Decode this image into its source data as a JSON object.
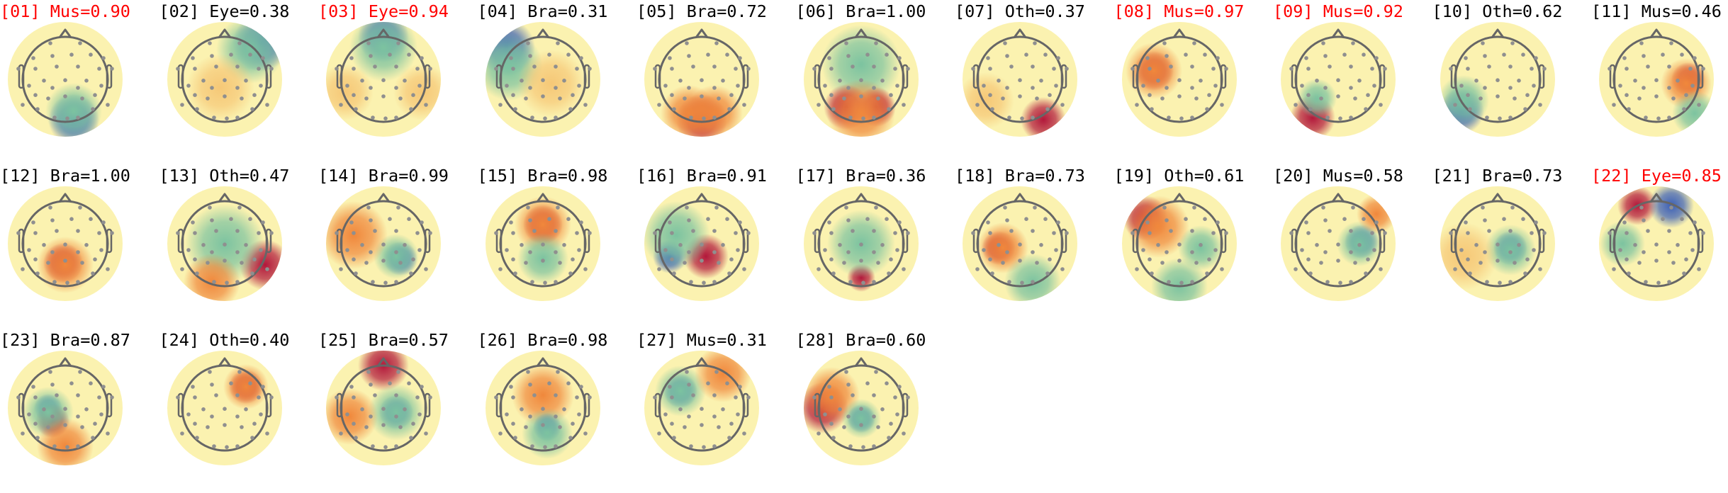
{
  "figure": {
    "flag_color": "#ff0000",
    "normal_color": "#000000",
    "colormap": "Spectral_r",
    "components": [
      {
        "id": "01",
        "class": "Mus",
        "prob": "0.90",
        "flagged": true
      },
      {
        "id": "02",
        "class": "Eye",
        "prob": "0.38",
        "flagged": false
      },
      {
        "id": "03",
        "class": "Eye",
        "prob": "0.94",
        "flagged": true
      },
      {
        "id": "04",
        "class": "Bra",
        "prob": "0.31",
        "flagged": false
      },
      {
        "id": "05",
        "class": "Bra",
        "prob": "0.72",
        "flagged": false
      },
      {
        "id": "06",
        "class": "Bra",
        "prob": "1.00",
        "flagged": false
      },
      {
        "id": "07",
        "class": "Oth",
        "prob": "0.37",
        "flagged": false
      },
      {
        "id": "08",
        "class": "Mus",
        "prob": "0.97",
        "flagged": true
      },
      {
        "id": "09",
        "class": "Mus",
        "prob": "0.92",
        "flagged": true
      },
      {
        "id": "10",
        "class": "Oth",
        "prob": "0.62",
        "flagged": false
      },
      {
        "id": "11",
        "class": "Mus",
        "prob": "0.46",
        "flagged": false
      },
      {
        "id": "12",
        "class": "Bra",
        "prob": "1.00",
        "flagged": false
      },
      {
        "id": "13",
        "class": "Oth",
        "prob": "0.47",
        "flagged": false
      },
      {
        "id": "14",
        "class": "Bra",
        "prob": "0.99",
        "flagged": false
      },
      {
        "id": "15",
        "class": "Bra",
        "prob": "0.98",
        "flagged": false
      },
      {
        "id": "16",
        "class": "Bra",
        "prob": "0.91",
        "flagged": false
      },
      {
        "id": "17",
        "class": "Bra",
        "prob": "0.36",
        "flagged": false
      },
      {
        "id": "18",
        "class": "Bra",
        "prob": "0.73",
        "flagged": false
      },
      {
        "id": "19",
        "class": "Oth",
        "prob": "0.61",
        "flagged": false
      },
      {
        "id": "20",
        "class": "Mus",
        "prob": "0.58",
        "flagged": false
      },
      {
        "id": "21",
        "class": "Bra",
        "prob": "0.73",
        "flagged": false
      },
      {
        "id": "22",
        "class": "Eye",
        "prob": "0.85",
        "flagged": true
      },
      {
        "id": "23",
        "class": "Bra",
        "prob": "0.87",
        "flagged": false
      },
      {
        "id": "24",
        "class": "Oth",
        "prob": "0.40",
        "flagged": false
      },
      {
        "id": "25",
        "class": "Bra",
        "prob": "0.57",
        "flagged": false
      },
      {
        "id": "26",
        "class": "Bra",
        "prob": "0.98",
        "flagged": false
      },
      {
        "id": "27",
        "class": "Mus",
        "prob": "0.31",
        "flagged": false
      },
      {
        "id": "28",
        "class": "Bra",
        "prob": "0.60",
        "flagged": false
      }
    ]
  }
}
